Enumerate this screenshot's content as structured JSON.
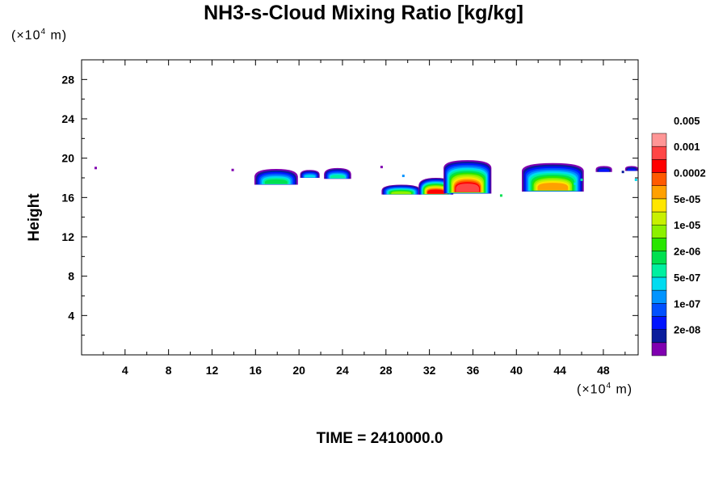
{
  "chart_data": {
    "type": "heatmap",
    "title": "NH3-s-Cloud Mixing Ratio [kg/kg]",
    "x_unit": {
      "prefix": "(×10",
      "exp": "4",
      "suffix": " m)"
    },
    "y_unit": {
      "prefix": "(×10",
      "exp": "4",
      "suffix": " m)"
    },
    "ylabel": "Height",
    "xlabel": "",
    "xlim": [
      0,
      51.2
    ],
    "ylim": [
      0,
      30
    ],
    "x_ticks": [
      4,
      8,
      12,
      16,
      20,
      24,
      28,
      32,
      36,
      40,
      44,
      48
    ],
    "y_ticks": [
      4,
      8,
      12,
      16,
      20,
      24,
      28
    ],
    "footer": "TIME = 2410000.0",
    "colorbar": {
      "colors": [
        "#8000b0",
        "#0a1c9c",
        "#0014ff",
        "#0050ff",
        "#0094ff",
        "#00dcf0",
        "#00f0a0",
        "#00e050",
        "#28e600",
        "#8cf000",
        "#c8f000",
        "#ffe600",
        "#ffa000",
        "#ff5a00",
        "#ff0000",
        "#ff4646",
        "#ff9696"
      ],
      "labels": [
        "2e-08",
        "1e-07",
        "5e-07",
        "2e-06",
        "1e-05",
        "5e-05",
        "0.0002",
        "0.001",
        "0.005"
      ]
    },
    "clouds": [
      {
        "x0": 15.9,
        "x1": 19.9,
        "ytop": 18.9,
        "ybot": 17.3,
        "peak": 7
      },
      {
        "x0": 20.1,
        "x1": 21.9,
        "ytop": 18.8,
        "ybot": 18.0,
        "peak": 5
      },
      {
        "x0": 22.3,
        "x1": 24.8,
        "ytop": 19.0,
        "ybot": 17.9,
        "peak": 6
      },
      {
        "x0": 27.6,
        "x1": 31.2,
        "ytop": 17.3,
        "ybot": 16.3,
        "peak": 9
      },
      {
        "x0": 31.0,
        "x1": 34.2,
        "ytop": 18.0,
        "ybot": 16.3,
        "peak": 14
      },
      {
        "x0": 33.3,
        "x1": 37.7,
        "ytop": 19.8,
        "ybot": 16.4,
        "peak": 15
      },
      {
        "x0": 40.5,
        "x1": 46.2,
        "ytop": 19.5,
        "ybot": 16.6,
        "peak": 12
      },
      {
        "x0": 47.3,
        "x1": 48.8,
        "ytop": 19.2,
        "ybot": 18.6,
        "peak": 2
      },
      {
        "x0": 50.0,
        "x1": 51.2,
        "ytop": 19.2,
        "ybot": 18.7,
        "peak": 2
      }
    ],
    "specks": [
      {
        "x": 1.3,
        "y": 19.0,
        "level": 0
      },
      {
        "x": 13.9,
        "y": 18.8,
        "level": 0
      },
      {
        "x": 27.6,
        "y": 19.1,
        "level": 0
      },
      {
        "x": 29.6,
        "y": 18.2,
        "level": 4
      },
      {
        "x": 38.6,
        "y": 16.2,
        "level": 7
      },
      {
        "x": 45.4,
        "y": 17.4,
        "level": 5
      },
      {
        "x": 46.0,
        "y": 17.8,
        "level": 6
      },
      {
        "x": 49.8,
        "y": 18.6,
        "level": 1
      },
      {
        "x": 51.0,
        "y": 17.8,
        "level": 5
      }
    ]
  }
}
